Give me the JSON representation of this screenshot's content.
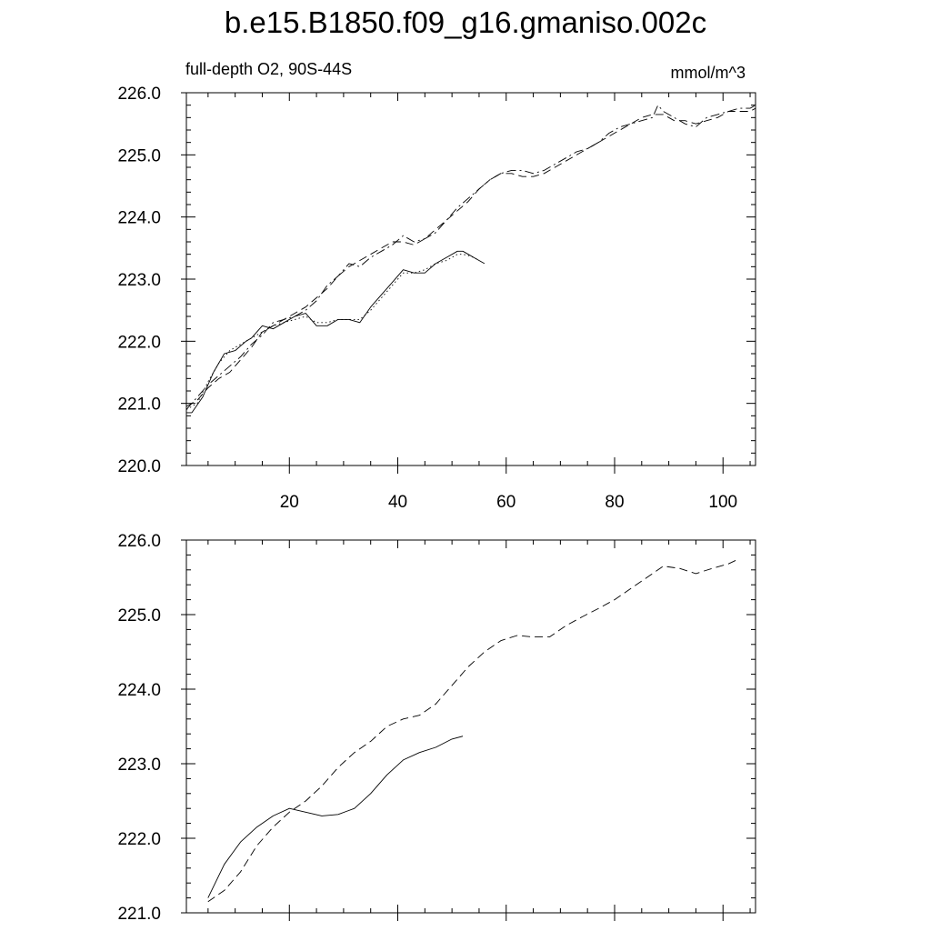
{
  "title": "b.e15.B1850.f09_g16.gmaniso.002c",
  "chart_data": [
    {
      "type": "line",
      "panel": "top",
      "left_label": "full-depth O2, 90S-44S",
      "right_label": "mmol/m^3",
      "xlim": [
        1,
        106
      ],
      "ylim": [
        220.0,
        226.0
      ],
      "x_ticks": [
        20,
        40,
        60,
        80,
        100
      ],
      "y_ticks": [
        220.0,
        221.0,
        222.0,
        223.0,
        224.0,
        225.0,
        226.0
      ],
      "x_tick_labels": [
        "20",
        "40",
        "60",
        "80",
        "100"
      ],
      "y_tick_labels": [
        "220.0",
        "221.0",
        "222.0",
        "223.0",
        "224.0",
        "225.0",
        "226.0"
      ],
      "series": [
        {
          "style": "solid",
          "x": [
            1,
            2,
            4,
            6,
            8,
            10,
            12,
            13,
            15,
            17,
            19,
            21,
            23,
            25,
            27,
            29,
            31,
            33,
            35,
            37,
            39,
            41,
            43,
            45,
            47,
            49,
            51,
            52,
            53,
            54,
            55,
            56
          ],
          "y": [
            220.85,
            220.85,
            221.1,
            221.5,
            221.8,
            221.85,
            222.0,
            222.05,
            222.25,
            222.2,
            222.3,
            222.4,
            222.45,
            222.25,
            222.25,
            222.35,
            222.35,
            222.3,
            222.55,
            222.75,
            222.95,
            223.15,
            223.1,
            223.1,
            223.25,
            223.35,
            223.45,
            223.45,
            223.4,
            223.35,
            223.3,
            223.25
          ]
        },
        {
          "style": "dotted",
          "x": [
            1,
            3,
            5,
            7,
            9,
            11,
            13,
            15,
            17,
            19,
            21,
            23,
            25,
            27,
            29,
            31,
            33,
            35,
            37,
            39,
            41,
            43,
            45,
            47,
            49,
            51,
            52,
            53,
            54,
            55
          ],
          "y": [
            220.9,
            221.0,
            221.35,
            221.65,
            221.85,
            221.95,
            222.05,
            222.15,
            222.25,
            222.3,
            222.35,
            222.4,
            222.3,
            222.3,
            222.35,
            222.35,
            222.35,
            222.5,
            222.7,
            222.9,
            223.1,
            223.1,
            223.15,
            223.25,
            223.3,
            223.4,
            223.4,
            223.38,
            223.35,
            223.3
          ]
        },
        {
          "style": "dashed",
          "x": [
            1,
            3,
            5,
            7,
            9,
            11,
            13,
            15,
            17,
            19,
            21,
            23,
            25,
            27,
            29,
            31,
            33,
            35,
            37,
            39,
            41,
            43,
            45,
            47,
            49,
            51,
            53,
            55,
            57,
            59,
            61,
            63,
            65,
            67,
            69,
            71,
            73,
            75,
            77,
            79,
            81,
            83,
            85,
            87,
            89,
            91,
            93,
            95,
            97,
            99,
            101,
            103,
            105,
            106
          ],
          "y": [
            220.95,
            221.05,
            221.25,
            221.4,
            221.5,
            221.7,
            221.9,
            222.15,
            222.25,
            222.35,
            222.45,
            222.55,
            222.7,
            222.85,
            223.05,
            223.2,
            223.3,
            223.4,
            223.5,
            223.6,
            223.6,
            223.55,
            223.65,
            223.8,
            223.95,
            224.1,
            224.25,
            224.45,
            224.6,
            224.7,
            224.7,
            224.65,
            224.65,
            224.7,
            224.8,
            224.9,
            225.0,
            225.1,
            225.2,
            225.3,
            225.4,
            225.5,
            225.6,
            225.65,
            225.65,
            225.55,
            225.55,
            225.5,
            225.55,
            225.6,
            225.7,
            225.7,
            225.7,
            225.75
          ]
        },
        {
          "style": "dash-dot",
          "x": [
            1,
            3,
            5,
            7,
            9,
            11,
            13,
            15,
            17,
            19,
            21,
            23,
            25,
            27,
            29,
            31,
            33,
            35,
            37,
            39,
            41,
            43,
            45,
            47,
            49,
            51,
            53,
            55,
            57,
            59,
            61,
            63,
            65,
            67,
            69,
            71,
            73,
            75,
            77,
            79,
            81,
            83,
            85,
            87,
            88,
            89,
            91,
            93,
            95,
            97,
            99,
            101,
            103,
            105,
            106
          ],
          "y": [
            220.9,
            221.1,
            221.3,
            221.45,
            221.6,
            221.75,
            221.95,
            222.1,
            222.3,
            222.35,
            222.4,
            222.5,
            222.65,
            222.9,
            223.05,
            223.25,
            223.2,
            223.35,
            223.45,
            223.55,
            223.7,
            223.6,
            223.65,
            223.75,
            223.95,
            224.15,
            224.3,
            224.45,
            224.6,
            224.7,
            224.75,
            224.75,
            224.7,
            224.75,
            224.85,
            224.95,
            225.05,
            225.1,
            225.2,
            225.35,
            225.45,
            225.5,
            225.55,
            225.6,
            225.8,
            225.7,
            225.6,
            225.5,
            225.45,
            225.6,
            225.65,
            225.7,
            225.75,
            225.75,
            225.8
          ]
        }
      ]
    },
    {
      "type": "line",
      "panel": "bottom",
      "xlim": [
        1,
        106
      ],
      "ylim": [
        221.0,
        226.0
      ],
      "x_ticks": [
        20,
        40,
        60,
        80,
        100
      ],
      "y_ticks": [
        221.0,
        222.0,
        223.0,
        224.0,
        225.0,
        226.0
      ],
      "y_tick_labels": [
        "221.0",
        "222.0",
        "223.0",
        "224.0",
        "225.0",
        "226.0"
      ],
      "series": [
        {
          "style": "solid",
          "x": [
            5,
            8,
            11,
            14,
            17,
            20,
            23,
            26,
            29,
            32,
            35,
            38,
            41,
            44,
            47,
            50,
            52
          ],
          "y": [
            221.2,
            221.65,
            221.95,
            222.15,
            222.3,
            222.4,
            222.35,
            222.3,
            222.32,
            222.4,
            222.6,
            222.85,
            223.05,
            223.15,
            223.22,
            223.33,
            223.37
          ]
        },
        {
          "style": "dashed",
          "x": [
            5,
            8,
            11,
            14,
            17,
            20,
            23,
            26,
            29,
            32,
            35,
            38,
            41,
            44,
            47,
            50,
            53,
            56,
            59,
            62,
            65,
            68,
            71,
            74,
            77,
            80,
            83,
            86,
            89,
            92,
            95,
            98,
            101,
            103
          ],
          "y": [
            221.15,
            221.3,
            221.55,
            221.9,
            222.15,
            222.35,
            222.5,
            222.7,
            222.95,
            223.15,
            223.3,
            223.5,
            223.6,
            223.65,
            223.8,
            224.05,
            224.3,
            224.5,
            224.65,
            224.72,
            224.7,
            224.7,
            224.85,
            224.97,
            225.08,
            225.2,
            225.35,
            225.5,
            225.65,
            225.62,
            225.55,
            225.62,
            225.68,
            225.75
          ]
        }
      ]
    }
  ]
}
